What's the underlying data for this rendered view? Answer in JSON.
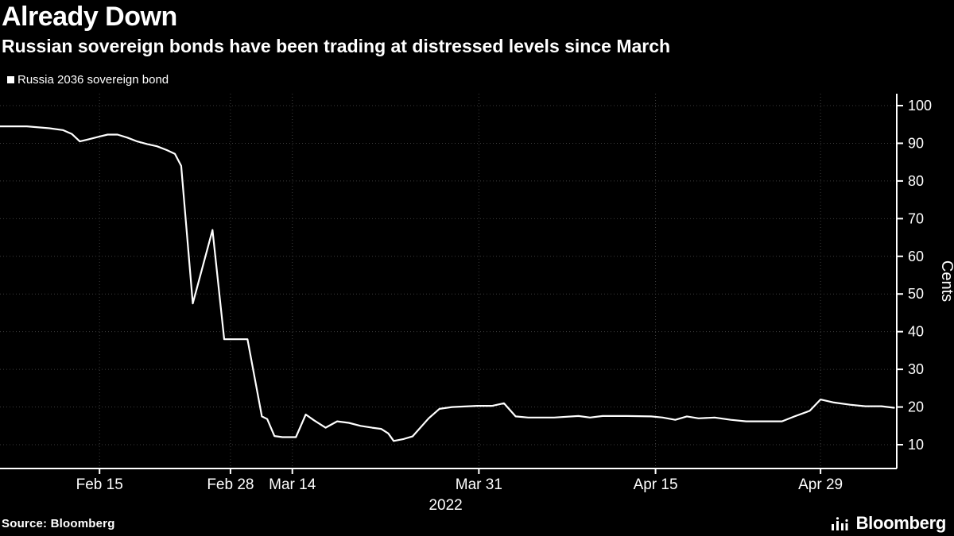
{
  "chart_data": {
    "type": "line",
    "title": "Already Down",
    "subtitle": "Russian sovereign bonds have been trading at distressed levels since March",
    "legend": [
      "Russia 2036 sovereign bond"
    ],
    "legend_position": "top-left",
    "ylabel": "Cents",
    "ylim": [
      10,
      100
    ],
    "grid": true,
    "y_ticks": [
      100,
      90,
      80,
      70,
      60,
      50,
      40,
      30,
      20,
      10
    ],
    "x_ticks": [
      {
        "label": "Feb 15",
        "pos": 0.111
      },
      {
        "label": "Feb 28",
        "pos": 0.257
      },
      {
        "label": "Mar 14",
        "pos": 0.326
      },
      {
        "label": "Mar 31",
        "pos": 0.534
      },
      {
        "label": "Apr 15",
        "pos": 0.731
      },
      {
        "label": "Apr 29",
        "pos": 0.915
      }
    ],
    "x_year": {
      "label": "2022",
      "pos": 0.497
    },
    "series": [
      {
        "name": "Russia 2036 sovereign bond",
        "color": "#ffffff",
        "points": [
          [
            0.0,
            94.5
          ],
          [
            0.03,
            94.5
          ],
          [
            0.055,
            94.0
          ],
          [
            0.07,
            93.5
          ],
          [
            0.08,
            92.5
          ],
          [
            0.089,
            90.5
          ],
          [
            0.098,
            91.0
          ],
          [
            0.111,
            91.8
          ],
          [
            0.12,
            92.3
          ],
          [
            0.131,
            92.3
          ],
          [
            0.142,
            91.5
          ],
          [
            0.153,
            90.5
          ],
          [
            0.164,
            89.8
          ],
          [
            0.175,
            89.2
          ],
          [
            0.186,
            88.2
          ],
          [
            0.195,
            87.2
          ],
          [
            0.202,
            84.0
          ],
          [
            0.215,
            47.5
          ],
          [
            0.237,
            67.0
          ],
          [
            0.25,
            38.0
          ],
          [
            0.276,
            38.0
          ],
          [
            0.292,
            17.5
          ],
          [
            0.298,
            16.8
          ],
          [
            0.306,
            12.3
          ],
          [
            0.315,
            12.0
          ],
          [
            0.33,
            12.0
          ],
          [
            0.341,
            18.0
          ],
          [
            0.35,
            16.5
          ],
          [
            0.363,
            14.5
          ],
          [
            0.376,
            16.2
          ],
          [
            0.389,
            15.8
          ],
          [
            0.402,
            15.0
          ],
          [
            0.415,
            14.5
          ],
          [
            0.425,
            14.2
          ],
          [
            0.433,
            13.0
          ],
          [
            0.439,
            11.0
          ],
          [
            0.45,
            11.5
          ],
          [
            0.46,
            12.2
          ],
          [
            0.478,
            17.0
          ],
          [
            0.49,
            19.5
          ],
          [
            0.504,
            20.0
          ],
          [
            0.532,
            20.3
          ],
          [
            0.549,
            20.3
          ],
          [
            0.562,
            21.0
          ],
          [
            0.575,
            17.5
          ],
          [
            0.589,
            17.2
          ],
          [
            0.618,
            17.2
          ],
          [
            0.645,
            17.6
          ],
          [
            0.658,
            17.2
          ],
          [
            0.672,
            17.6
          ],
          [
            0.699,
            17.6
          ],
          [
            0.726,
            17.5
          ],
          [
            0.739,
            17.2
          ],
          [
            0.753,
            16.6
          ],
          [
            0.766,
            17.5
          ],
          [
            0.779,
            17.0
          ],
          [
            0.797,
            17.2
          ],
          [
            0.815,
            16.6
          ],
          [
            0.832,
            16.2
          ],
          [
            0.85,
            16.2
          ],
          [
            0.872,
            16.2
          ],
          [
            0.886,
            17.5
          ],
          [
            0.903,
            19.0
          ],
          [
            0.915,
            22.0
          ],
          [
            0.93,
            21.2
          ],
          [
            0.948,
            20.6
          ],
          [
            0.965,
            20.2
          ],
          [
            0.983,
            20.2
          ],
          [
            0.997,
            19.8
          ]
        ]
      }
    ],
    "colors": {
      "bg": "#000000",
      "fg": "#ffffff",
      "grid": "#3d3d3d"
    },
    "source": "Source: Bloomberg",
    "brand": "Bloomberg"
  }
}
